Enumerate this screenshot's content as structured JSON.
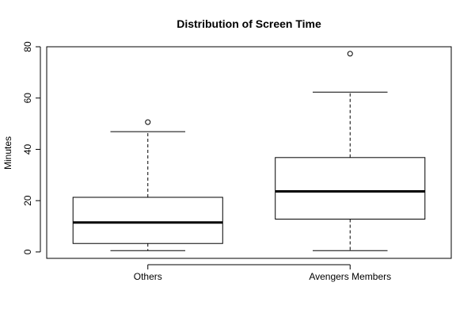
{
  "chart_data": {
    "type": "box",
    "title": "Distribution of Screen Time",
    "xlabel": "",
    "ylabel": "Minutes",
    "ylim": [
      -2.5,
      80
    ],
    "yticks": [
      0,
      20,
      40,
      60,
      80
    ],
    "categories": [
      "Others",
      "Avengers Members"
    ],
    "boxes": [
      {
        "category": "Others",
        "whisker_low": 0.5,
        "q1": 3.3,
        "median": 11.5,
        "q3": 21.3,
        "whisker_high": 46.9,
        "outliers": [
          50.6
        ]
      },
      {
        "category": "Avengers Members",
        "whisker_low": 0.5,
        "q1": 12.8,
        "median": 23.6,
        "q3": 36.8,
        "whisker_high": 62.3,
        "outliers": [
          77.3
        ]
      }
    ],
    "grid": false,
    "legend": "none"
  }
}
